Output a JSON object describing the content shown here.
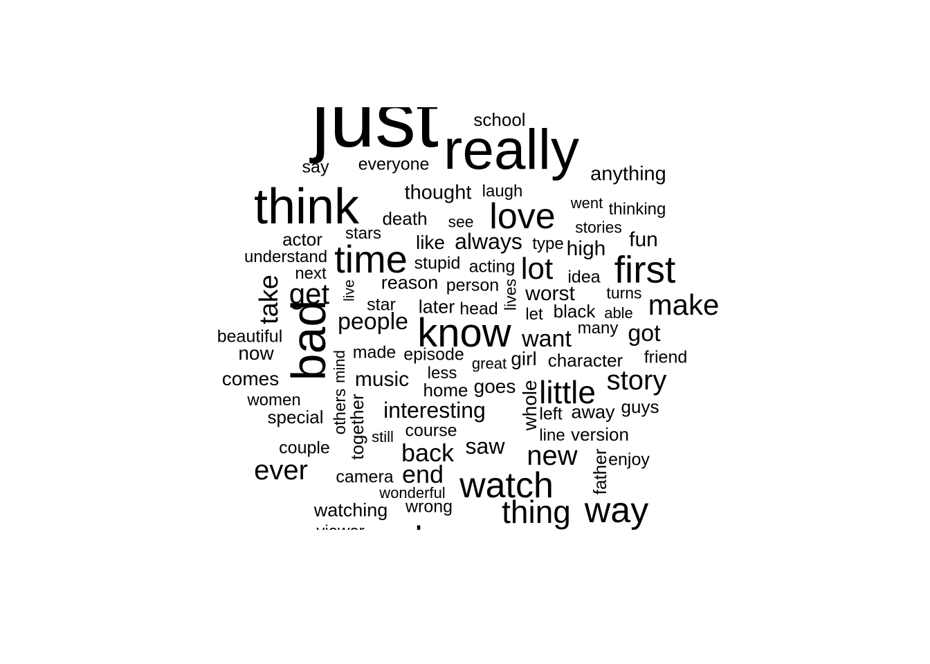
{
  "word_cloud": {
    "text_color": "#000000",
    "background": "#ffffff",
    "words": [
      "just",
      "really",
      "think",
      "bad",
      "time",
      "know",
      "love",
      "first",
      "watch",
      "way",
      "little",
      "thing",
      "lot",
      "make",
      "story",
      "get",
      "take",
      "new",
      "ever",
      "people",
      "back",
      "end",
      "want",
      "got",
      "worst",
      "always",
      "thought",
      "anything",
      "school",
      "everyone",
      "say",
      "death",
      "actor",
      "fun",
      "high",
      "interesting",
      "saw",
      "music",
      "comes",
      "special",
      "stupid",
      "reason",
      "acting",
      "stars",
      "laugh",
      "went",
      "thinking",
      "see",
      "stories",
      "like",
      "type",
      "understand",
      "next",
      "person",
      "idea",
      "lives",
      "live",
      "star",
      "later",
      "head",
      "black",
      "turns",
      "let",
      "able",
      "many",
      "beautiful",
      "now",
      "made",
      "episode",
      "great",
      "girl",
      "character",
      "friend",
      "mind",
      "less",
      "home",
      "goes",
      "whole",
      "women",
      "others",
      "together",
      "away",
      "guys",
      "left",
      "course",
      "still",
      "line",
      "version",
      "couple",
      "father",
      "enjoy",
      "camera",
      "wonderful",
      "watching",
      "wrong",
      "viewer",
      "also"
    ]
  }
}
